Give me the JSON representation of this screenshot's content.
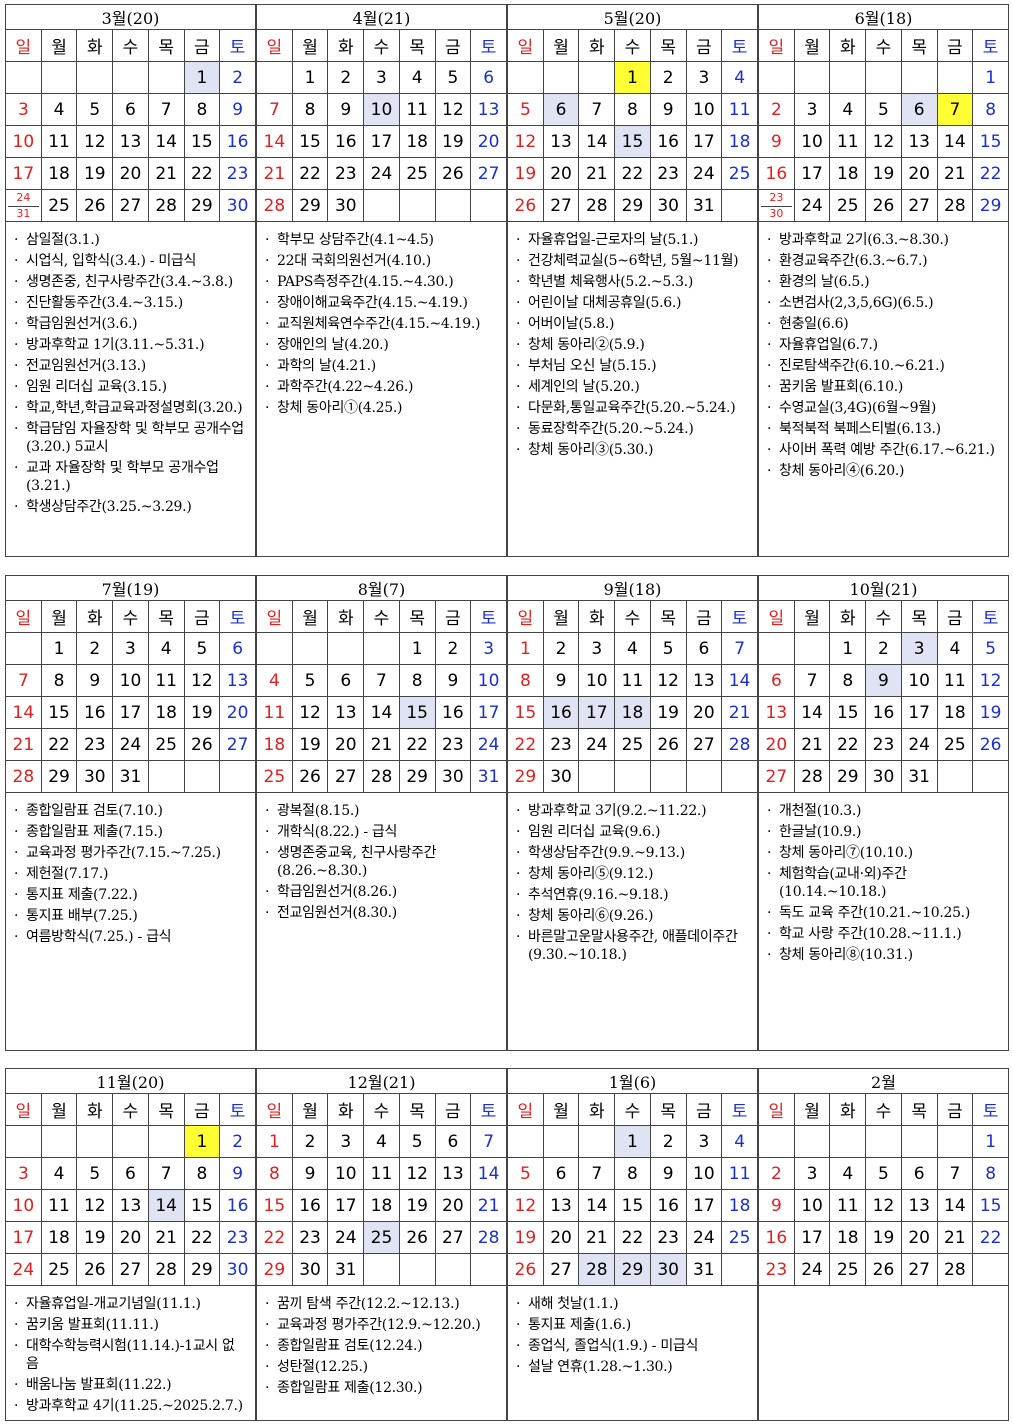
{
  "weekday_labels": [
    "일",
    "월",
    "화",
    "수",
    "목",
    "금",
    "토"
  ],
  "blocks": [
    {
      "months": [
        {
          "title": "3월(20)",
          "weeks": [
            [
              "",
              "",
              "",
              "",
              "",
              "1",
              "2"
            ],
            [
              "3",
              "4",
              "5",
              "6",
              "7",
              "8",
              "9"
            ],
            [
              "10",
              "11",
              "12",
              "13",
              "14",
              "15",
              "16"
            ],
            [
              "17",
              "18",
              "19",
              "20",
              "21",
              "22",
              "23"
            ],
            [
              "24|31",
              "25",
              "26",
              "27",
              "28",
              "29",
              "30"
            ]
          ],
          "highlights": {
            "blue": [
              "1"
            ],
            "yellow": []
          },
          "events": [
            "삼일절(3.1.)",
            "시업식, 입학식(3.4.) - 미급식",
            "생명존중, 친구사랑주간(3.4.~3.8.)",
            "진단활동주간(3.4.~3.15.)",
            "학급임원선거(3.6.)",
            "방과후학교 1기(3.11.~5.31.)",
            "전교임원선거(3.13.)",
            "임원 리더십 교육(3.15.)",
            "학교,학년,학급교육과정설명회(3.20.)",
            "학급담임 자율장학 및 학부모 공개수업(3.20.) 5교시",
            "교과 자율장학 및 학부모 공개수업(3.21.)",
            "학생상담주간(3.25.~3.29.)"
          ]
        },
        {
          "title": "4월(21)",
          "weeks": [
            [
              "",
              "1",
              "2",
              "3",
              "4",
              "5",
              "6"
            ],
            [
              "7",
              "8",
              "9",
              "10",
              "11",
              "12",
              "13"
            ],
            [
              "14",
              "15",
              "16",
              "17",
              "18",
              "19",
              "20"
            ],
            [
              "21",
              "22",
              "23",
              "24",
              "25",
              "26",
              "27"
            ],
            [
              "28",
              "29",
              "30",
              "",
              "",
              "",
              ""
            ]
          ],
          "highlights": {
            "blue": [
              "10"
            ],
            "yellow": []
          },
          "events": [
            "학부모 상담주간(4.1~4.5)",
            "22대 국회의원선거(4.10.)",
            "PAPS측정주간(4.15.~4.30.)",
            "장애이해교육주간(4.15.~4.19.)",
            "교직원체육연수주간(4.15.~4.19.)",
            "장애인의 날(4.20.)",
            "과학의 날(4.21.)",
            "과학주간(4.22~4.26.)",
            "창체 동아리①(4.25.)"
          ]
        },
        {
          "title": "5월(20)",
          "weeks": [
            [
              "",
              "",
              "",
              "1",
              "2",
              "3",
              "4"
            ],
            [
              "5",
              "6",
              "7",
              "8",
              "9",
              "10",
              "11"
            ],
            [
              "12",
              "13",
              "14",
              "15",
              "16",
              "17",
              "18"
            ],
            [
              "19",
              "20",
              "21",
              "22",
              "23",
              "24",
              "25"
            ],
            [
              "26",
              "27",
              "28",
              "29",
              "30",
              "31",
              ""
            ]
          ],
          "highlights": {
            "blue": [
              "6",
              "15"
            ],
            "yellow": [
              "1"
            ]
          },
          "events": [
            "자율휴업일-근로자의 날(5.1.)",
            "건강체력교실(5~6학년, 5월~11월)",
            "학년별 체육행사(5.2.~5.3.)",
            "어린이날 대체공휴일(5.6.)",
            "어버이날(5.8.)",
            "창체 동아리②(5.9.)",
            "부처님 오신 날(5.15.)",
            "세계인의 날(5.20.)",
            "다문화,통일교육주간(5.20.~5.24.)",
            "동료장학주간(5.20.~5.24.)",
            "창체 동아리③(5.30.)"
          ]
        },
        {
          "title": "6월(18)",
          "weeks": [
            [
              "",
              "",
              "",
              "",
              "",
              "",
              "1"
            ],
            [
              "2",
              "3",
              "4",
              "5",
              "6",
              "7",
              "8"
            ],
            [
              "9",
              "10",
              "11",
              "12",
              "13",
              "14",
              "15"
            ],
            [
              "16",
              "17",
              "18",
              "19",
              "20",
              "21",
              "22"
            ],
            [
              "23|30",
              "24",
              "25",
              "26",
              "27",
              "28",
              "29"
            ]
          ],
          "highlights": {
            "blue": [
              "6"
            ],
            "yellow": [
              "7"
            ]
          },
          "events": [
            "방과후학교 2기(6.3.~8.30.)",
            "환경교육주간(6.3.~6.7.)",
            "환경의 날(6.5.)",
            "소변검사(2,3,5,6G)(6.5.)",
            "현충일(6.6)",
            "자율휴업일(6.7.)",
            "진로탐색주간(6.10.~6.21.)",
            "꿈키움 발표회(6.10.)",
            "수영교실(3,4G)(6월~9월)",
            "북적북적 북페스티벌(6.13.)",
            "사이버 폭력 예방 주간(6.17.~6.21.)",
            "창체 동아리④(6.20.)"
          ]
        }
      ]
    },
    {
      "months": [
        {
          "title": "7월(19)",
          "weeks": [
            [
              "",
              "1",
              "2",
              "3",
              "4",
              "5",
              "6"
            ],
            [
              "7",
              "8",
              "9",
              "10",
              "11",
              "12",
              "13"
            ],
            [
              "14",
              "15",
              "16",
              "17",
              "18",
              "19",
              "20"
            ],
            [
              "21",
              "22",
              "23",
              "24",
              "25",
              "26",
              "27"
            ],
            [
              "28",
              "29",
              "30",
              "31",
              "",
              "",
              ""
            ]
          ],
          "highlights": {
            "blue": [],
            "yellow": []
          },
          "events": [
            "종합일람표 검토(7.10.)",
            "종합일람표 제출(7.15.)",
            "교육과정 평가주간(7.15.~7.25.)",
            "제헌절(7.17.)",
            "통지표 제출(7.22.)",
            "통지표 배부(7.25.)",
            "여름방학식(7.25.) - 급식"
          ]
        },
        {
          "title": "8월(7)",
          "weeks": [
            [
              "",
              "",
              "",
              "",
              "1",
              "2",
              "3"
            ],
            [
              "4",
              "5",
              "6",
              "7",
              "8",
              "9",
              "10"
            ],
            [
              "11",
              "12",
              "13",
              "14",
              "15",
              "16",
              "17"
            ],
            [
              "18",
              "19",
              "20",
              "21",
              "22",
              "23",
              "24"
            ],
            [
              "25",
              "26",
              "27",
              "28",
              "29",
              "30",
              "31"
            ]
          ],
          "highlights": {
            "blue": [
              "15"
            ],
            "yellow": []
          },
          "events": [
            "광복절(8.15.)",
            "개학식(8.22.) - 급식",
            "생명존중교육, 친구사랑주간(8.26.~8.30.)",
            "학급임원선거(8.26.)",
            "전교임원선거(8.30.)"
          ]
        },
        {
          "title": "9월(18)",
          "weeks": [
            [
              "1",
              "2",
              "3",
              "4",
              "5",
              "6",
              "7"
            ],
            [
              "8",
              "9",
              "10",
              "11",
              "12",
              "13",
              "14"
            ],
            [
              "15",
              "16",
              "17",
              "18",
              "19",
              "20",
              "21"
            ],
            [
              "22",
              "23",
              "24",
              "25",
              "26",
              "27",
              "28"
            ],
            [
              "29",
              "30",
              "",
              "",
              "",
              "",
              ""
            ]
          ],
          "highlights": {
            "blue": [
              "16",
              "17",
              "18"
            ],
            "yellow": []
          },
          "events": [
            "방과후학교 3기(9.2.~11.22.)",
            "임원 리더십 교육(9.6.)",
            "학생상담주간(9.9.~9.13.)",
            "창체 동아리⑤(9.12.)",
            "추석연휴(9.16.~9.18.)",
            "창체 동아리⑥(9.26.)",
            "바른말고운말사용주간, 애플데이주간(9.30.~10.18.)"
          ]
        },
        {
          "title": "10월(21)",
          "weeks": [
            [
              "",
              "",
              "1",
              "2",
              "3",
              "4",
              "5"
            ],
            [
              "6",
              "7",
              "8",
              "9",
              "10",
              "11",
              "12"
            ],
            [
              "13",
              "14",
              "15",
              "16",
              "17",
              "18",
              "19"
            ],
            [
              "20",
              "21",
              "22",
              "23",
              "24",
              "25",
              "26"
            ],
            [
              "27",
              "28",
              "29",
              "30",
              "31",
              "",
              ""
            ]
          ],
          "highlights": {
            "blue": [
              "3",
              "9"
            ],
            "yellow": []
          },
          "events": [
            "개천절(10.3.)",
            "한글날(10.9.)",
            "창체 동아리⑦(10.10.)",
            "체험학습(교내·외)주간(10.14.~10.18.)",
            "독도 교육 주간(10.21.~10.25.)",
            "학교 사랑 주간(10.28.~11.1.)",
            "창체 동아리⑧(10.31.)"
          ]
        }
      ]
    },
    {
      "months": [
        {
          "title": "11월(20)",
          "weeks": [
            [
              "",
              "",
              "",
              "",
              "",
              "1",
              "2"
            ],
            [
              "3",
              "4",
              "5",
              "6",
              "7",
              "8",
              "9"
            ],
            [
              "10",
              "11",
              "12",
              "13",
              "14",
              "15",
              "16"
            ],
            [
              "17",
              "18",
              "19",
              "20",
              "21",
              "22",
              "23"
            ],
            [
              "24",
              "25",
              "26",
              "27",
              "28",
              "29",
              "30"
            ]
          ],
          "highlights": {
            "blue": [
              "14"
            ],
            "yellow": [
              "1"
            ]
          },
          "events": [
            "자율휴업일-개교기념일(11.1.)",
            "꿈키움 발표회(11.11.)",
            "대학수학능력시험(11.14.)-1교시 없음",
            "배움나눔 발표회(11.22.)",
            "방과후학교 4기(11.25.~2025.2.7.)"
          ]
        },
        {
          "title": "12월(21)",
          "weeks": [
            [
              "1",
              "2",
              "3",
              "4",
              "5",
              "6",
              "7"
            ],
            [
              "8",
              "9",
              "10",
              "11",
              "12",
              "13",
              "14"
            ],
            [
              "15",
              "16",
              "17",
              "18",
              "19",
              "20",
              "21"
            ],
            [
              "22",
              "23",
              "24",
              "25",
              "26",
              "27",
              "28"
            ],
            [
              "29",
              "30",
              "31",
              "",
              "",
              "",
              ""
            ]
          ],
          "highlights": {
            "blue": [
              "25"
            ],
            "yellow": []
          },
          "events": [
            "꿈끼 탐색 주간(12.2.~12.13.)",
            "교육과정 평가주간(12.9.~12.20.)",
            "종합일람표 검토(12.24.)",
            "성탄절(12.25.)",
            "종합일람표 제출(12.30.)"
          ]
        },
        {
          "title": "1월(6)",
          "weeks": [
            [
              "",
              "",
              "",
              "1",
              "2",
              "3",
              "4"
            ],
            [
              "5",
              "6",
              "7",
              "8",
              "9",
              "10",
              "11"
            ],
            [
              "12",
              "13",
              "14",
              "15",
              "16",
              "17",
              "18"
            ],
            [
              "19",
              "20",
              "21",
              "22",
              "23",
              "24",
              "25"
            ],
            [
              "26",
              "27",
              "28",
              "29",
              "30",
              "31",
              ""
            ]
          ],
          "highlights": {
            "blue": [
              "1",
              "28",
              "29",
              "30"
            ],
            "yellow": []
          },
          "events": [
            "새해 첫날(1.1.)",
            "통지표 제출(1.6.)",
            "종업식, 졸업식(1.9.) - 미급식",
            "설날 연휴(1.28.~1.30.)"
          ]
        },
        {
          "title": "2월",
          "weeks": [
            [
              "",
              "",
              "",
              "",
              "",
              "",
              "1"
            ],
            [
              "2",
              "3",
              "4",
              "5",
              "6",
              "7",
              "8"
            ],
            [
              "9",
              "10",
              "11",
              "12",
              "13",
              "14",
              "15"
            ],
            [
              "16",
              "17",
              "18",
              "19",
              "20",
              "21",
              "22"
            ],
            [
              "23",
              "24",
              "25",
              "26",
              "27",
              "28",
              ""
            ]
          ],
          "highlights": {
            "blue": [],
            "yellow": []
          },
          "events": []
        }
      ]
    }
  ]
}
